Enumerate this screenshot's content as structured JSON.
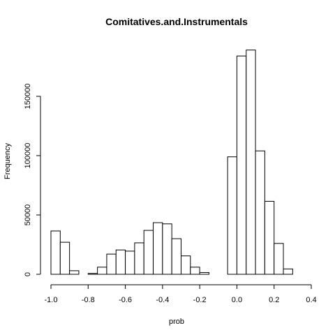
{
  "chart_data": {
    "type": "bar",
    "subtype": "histogram",
    "title": "Comitatives.and.Instrumentals",
    "xlabel": "prob",
    "ylabel": "Frequency",
    "xlim": [
      -1.0,
      0.4
    ],
    "ylim": [
      0,
      190000
    ],
    "xticks": [
      -1.0,
      -0.8,
      -0.6,
      -0.4,
      -0.2,
      0.0,
      0.2,
      0.4
    ],
    "xtick_labels": [
      "-1.0",
      "-0.8",
      "-0.6",
      "-0.4",
      "-0.2",
      "0.0",
      "0.2",
      "0.4"
    ],
    "yticks": [
      0,
      50000,
      100000,
      150000
    ],
    "ytick_labels": [
      "0",
      "50000",
      "100000",
      "150000"
    ],
    "grid": false,
    "legend": "none",
    "bin_width": 0.05,
    "bins": [
      {
        "x0": -1.0,
        "x1": -0.95,
        "count": 36500
      },
      {
        "x0": -0.95,
        "x1": -0.9,
        "count": 27000
      },
      {
        "x0": -0.9,
        "x1": -0.85,
        "count": 3000
      },
      {
        "x0": -0.85,
        "x1": -0.8,
        "count": 0
      },
      {
        "x0": -0.8,
        "x1": -0.75,
        "count": 700
      },
      {
        "x0": -0.75,
        "x1": -0.7,
        "count": 6000
      },
      {
        "x0": -0.7,
        "x1": -0.65,
        "count": 17000
      },
      {
        "x0": -0.65,
        "x1": -0.6,
        "count": 20500
      },
      {
        "x0": -0.6,
        "x1": -0.55,
        "count": 19500
      },
      {
        "x0": -0.55,
        "x1": -0.5,
        "count": 26500
      },
      {
        "x0": -0.5,
        "x1": -0.45,
        "count": 37000
      },
      {
        "x0": -0.45,
        "x1": -0.4,
        "count": 43500
      },
      {
        "x0": -0.4,
        "x1": -0.35,
        "count": 42500
      },
      {
        "x0": -0.35,
        "x1": -0.3,
        "count": 30000
      },
      {
        "x0": -0.3,
        "x1": -0.25,
        "count": 15500
      },
      {
        "x0": -0.25,
        "x1": -0.2,
        "count": 6000
      },
      {
        "x0": -0.2,
        "x1": -0.15,
        "count": 1500
      },
      {
        "x0": -0.15,
        "x1": -0.1,
        "count": 0
      },
      {
        "x0": -0.1,
        "x1": -0.05,
        "count": 0
      },
      {
        "x0": -0.05,
        "x1": 0.0,
        "count": 99000
      },
      {
        "x0": 0.0,
        "x1": 0.05,
        "count": 184000
      },
      {
        "x0": 0.05,
        "x1": 0.1,
        "count": 189000
      },
      {
        "x0": 0.1,
        "x1": 0.15,
        "count": 104000
      },
      {
        "x0": 0.15,
        "x1": 0.2,
        "count": 61500
      },
      {
        "x0": 0.2,
        "x1": 0.25,
        "count": 26000
      },
      {
        "x0": 0.25,
        "x1": 0.3,
        "count": 4500
      },
      {
        "x0": 0.3,
        "x1": 0.35,
        "count": 0
      }
    ]
  }
}
